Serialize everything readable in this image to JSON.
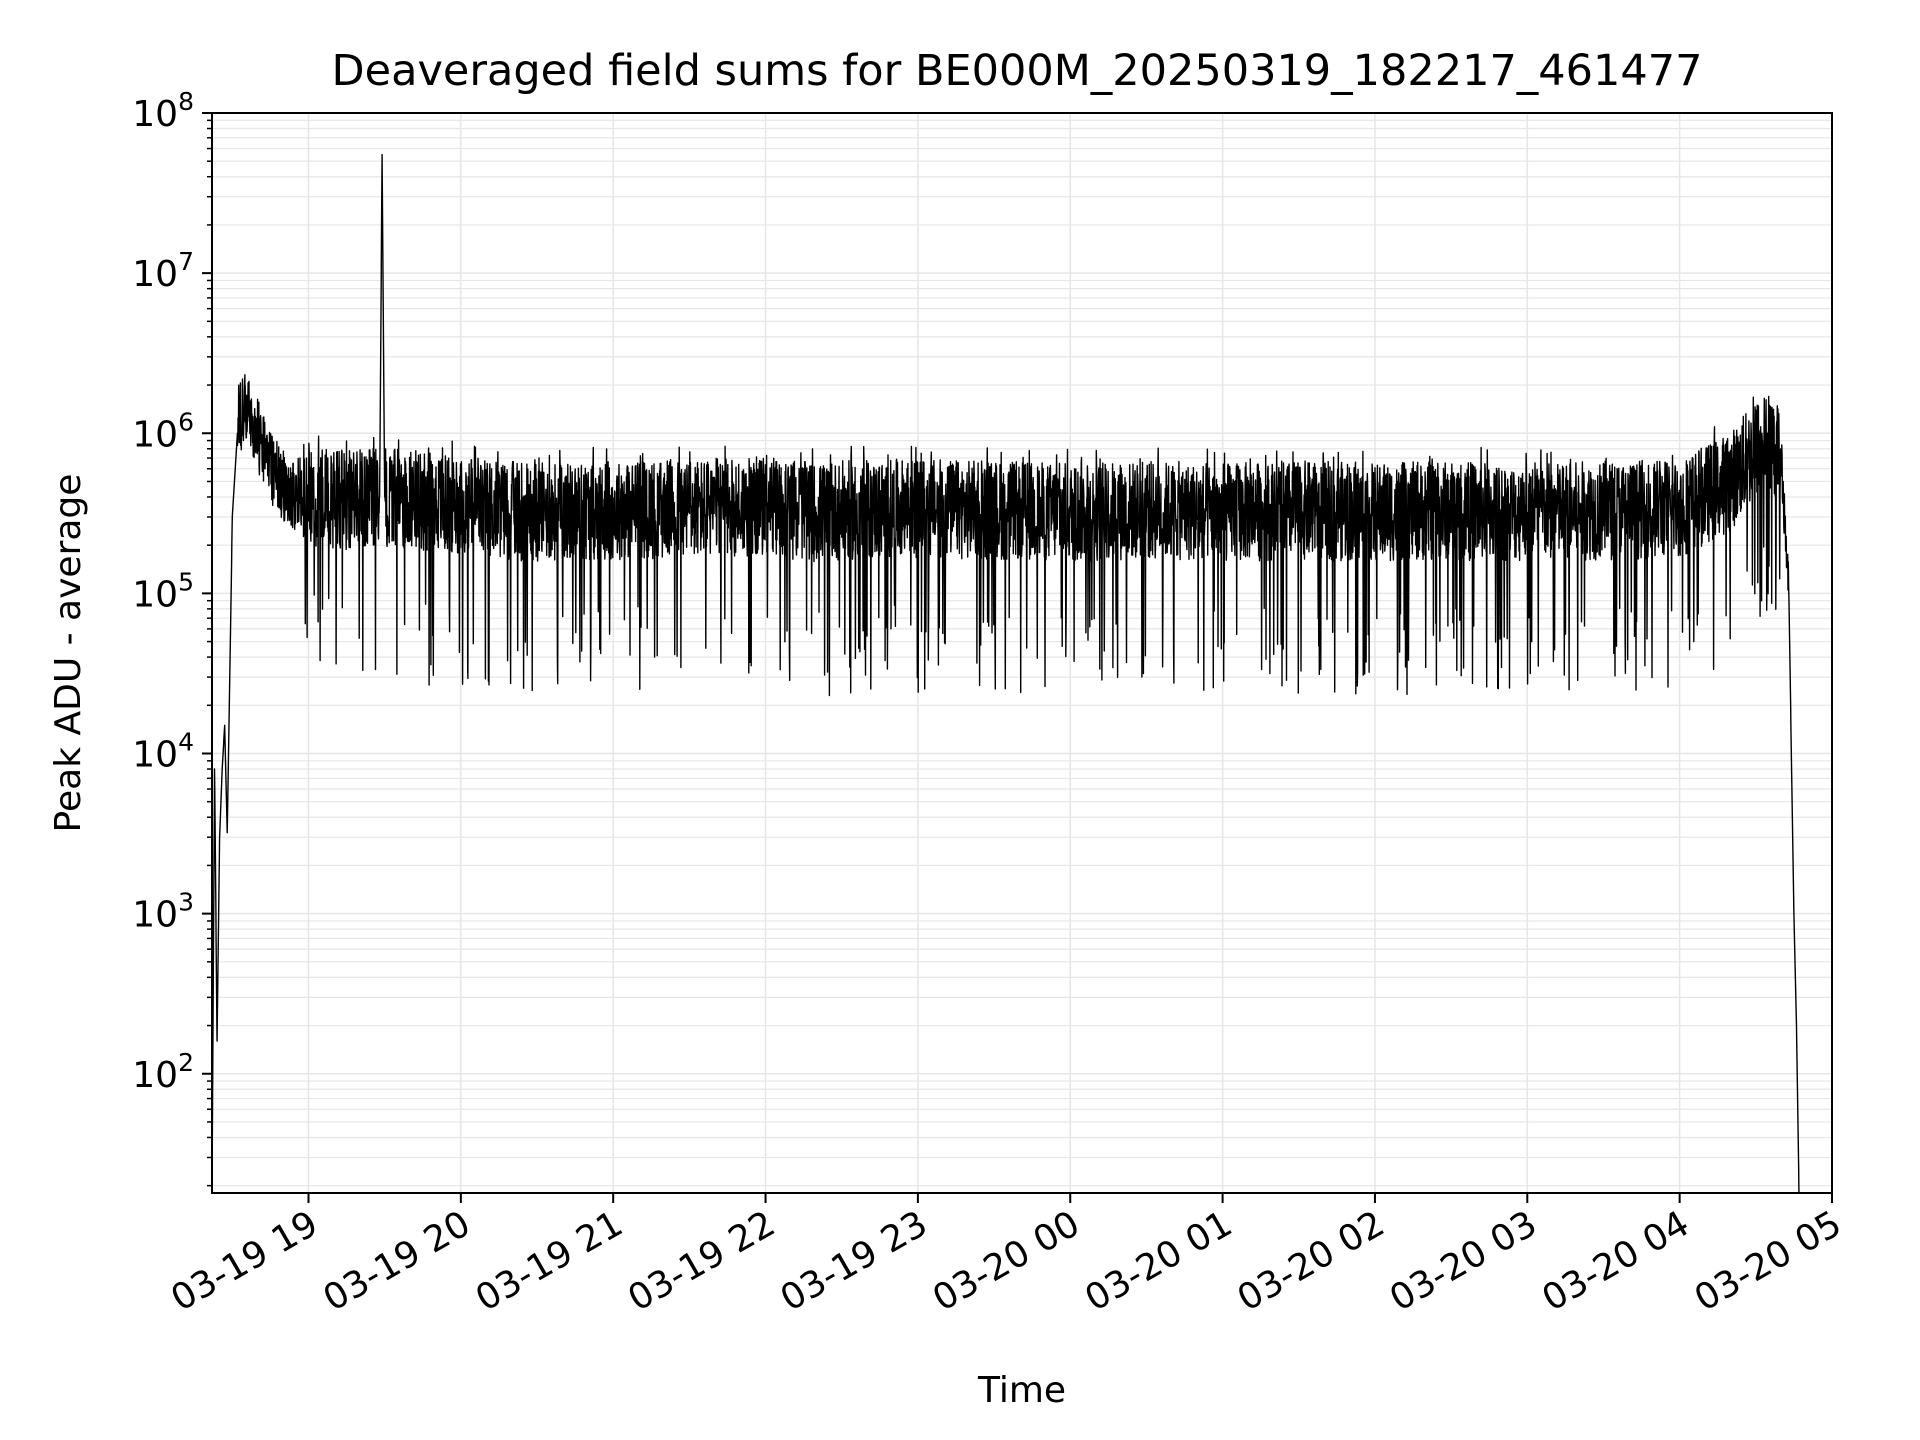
{
  "chart_data": {
    "type": "line",
    "title": "Deaveraged field sums for BE000M_20250319_182217_461477",
    "xlabel": "Time",
    "ylabel": "Peak ADU - average",
    "y_scale": "log",
    "ylim": [
      18,
      100000000
    ],
    "xlim": [
      "2025-03-19 18:22",
      "2025-03-20 05:00"
    ],
    "grid": true,
    "grid_minor": true,
    "line_color": "#000000",
    "grid_color": "#e6e6e6",
    "x_ticks": [
      {
        "value": "2025-03-19 19:00",
        "label": "03-19 19"
      },
      {
        "value": "2025-03-19 20:00",
        "label": "03-19 20"
      },
      {
        "value": "2025-03-19 21:00",
        "label": "03-19 21"
      },
      {
        "value": "2025-03-19 22:00",
        "label": "03-19 22"
      },
      {
        "value": "2025-03-19 23:00",
        "label": "03-19 23"
      },
      {
        "value": "2025-03-20 00:00",
        "label": "03-20 00"
      },
      {
        "value": "2025-03-20 01:00",
        "label": "03-20 01"
      },
      {
        "value": "2025-03-20 02:00",
        "label": "03-20 02"
      },
      {
        "value": "2025-03-20 03:00",
        "label": "03-20 03"
      },
      {
        "value": "2025-03-20 04:00",
        "label": "03-20 04"
      },
      {
        "value": "2025-03-20 05:00",
        "label": "03-20 05"
      }
    ],
    "y_ticks": [
      {
        "value": 100,
        "base": "10",
        "exp": "2"
      },
      {
        "value": 1000,
        "base": "10",
        "exp": "3"
      },
      {
        "value": 10000,
        "base": "10",
        "exp": "4"
      },
      {
        "value": 100000,
        "base": "10",
        "exp": "5"
      },
      {
        "value": 1000000,
        "base": "10",
        "exp": "6"
      },
      {
        "value": 10000000,
        "base": "10",
        "exp": "7"
      },
      {
        "value": 100000000,
        "base": "10",
        "exp": "8"
      }
    ],
    "series": [
      {
        "x": [
          "2025-03-19 18:22",
          "2025-03-19 18:23",
          "2025-03-19 18:24",
          "2025-03-19 18:25",
          "2025-03-19 18:26",
          "2025-03-19 18:27",
          "2025-03-19 18:28",
          "2025-03-19 18:30",
          "2025-03-19 18:32",
          "2025-03-19 18:35",
          "2025-03-19 18:38",
          "2025-03-19 18:42",
          "2025-03-19 18:46",
          "2025-03-19 18:50",
          "2025-03-19 18:54",
          "2025-03-19 18:58",
          "2025-03-19 19:05",
          "2025-03-19 19:15",
          "2025-03-19 19:28",
          "2025-03-19 19:29",
          "2025-03-19 19:30",
          "2025-03-19 19:45",
          "2025-03-19 20:00",
          "2025-03-19 20:30",
          "2025-03-19 21:00",
          "2025-03-19 21:30",
          "2025-03-19 22:00",
          "2025-03-19 22:20",
          "2025-03-19 22:30",
          "2025-03-19 23:00",
          "2025-03-19 23:30",
          "2025-03-20 00:00",
          "2025-03-20 00:30",
          "2025-03-20 01:00",
          "2025-03-20 01:30",
          "2025-03-20 02:00",
          "2025-03-20 02:30",
          "2025-03-20 03:00",
          "2025-03-20 03:30",
          "2025-03-20 04:00",
          "2025-03-20 04:20",
          "2025-03-20 04:30",
          "2025-03-20 04:36",
          "2025-03-20 04:40",
          "2025-03-20 04:43",
          "2025-03-20 04:45",
          "2025-03-20 04:46",
          "2025-03-20 04:47"
        ],
        "y": [
          18,
          8000,
          160,
          3000,
          8000,
          15000,
          3200,
          300000,
          1000000,
          1200000,
          1000000,
          700000,
          500000,
          400000,
          350000,
          380000,
          400000,
          380000,
          400000,
          55000000,
          400000,
          380000,
          350000,
          320000,
          330000,
          340000,
          350000,
          320000,
          330000,
          340000,
          330000,
          320000,
          330000,
          320000,
          330000,
          320000,
          330000,
          320000,
          330000,
          340000,
          500000,
          800000,
          900000,
          700000,
          100000,
          1000,
          200,
          18
        ],
        "band": {
          "typical_high": 700000,
          "typical_low": 120000,
          "min_dip": 21000,
          "max_spike": 2700000
        }
      }
    ]
  }
}
